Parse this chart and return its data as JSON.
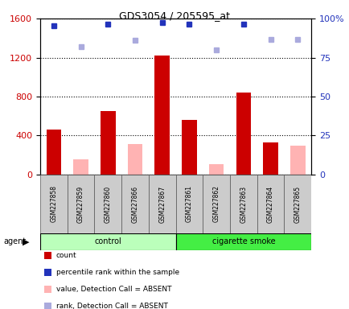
{
  "title": "GDS3054 / 205595_at",
  "samples": [
    "GSM227858",
    "GSM227859",
    "GSM227860",
    "GSM227866",
    "GSM227867",
    "GSM227861",
    "GSM227862",
    "GSM227863",
    "GSM227864",
    "GSM227865"
  ],
  "count_values": [
    460,
    null,
    650,
    null,
    1220,
    560,
    null,
    840,
    330,
    null
  ],
  "absent_value_values": [
    null,
    155,
    null,
    310,
    null,
    null,
    105,
    null,
    null,
    295
  ],
  "rank_values": [
    1530,
    null,
    1545,
    null,
    1560,
    1540,
    null,
    1545,
    null,
    null
  ],
  "rank_absent_values": [
    null,
    1310,
    null,
    1380,
    null,
    null,
    1280,
    null,
    1385,
    1385
  ],
  "left_ylim": [
    0,
    1600
  ],
  "right_ylim": [
    0,
    100
  ],
  "left_yticks": [
    0,
    400,
    800,
    1200,
    1600
  ],
  "right_yticks": [
    0,
    25,
    50,
    75,
    100
  ],
  "right_yticklabels": [
    "0",
    "25",
    "50",
    "75",
    "100%"
  ],
  "count_color": "#cc0000",
  "absent_value_color": "#ffb3b3",
  "rank_color": "#2233bb",
  "rank_absent_color": "#aaaadd",
  "control_color": "#bbffbb",
  "smoke_color": "#44ee44",
  "legend_items": [
    {
      "color": "#cc0000",
      "label": "count"
    },
    {
      "color": "#2233bb",
      "label": "percentile rank within the sample"
    },
    {
      "color": "#ffb3b3",
      "label": "value, Detection Call = ABSENT"
    },
    {
      "color": "#aaaadd",
      "label": "rank, Detection Call = ABSENT"
    }
  ],
  "marker_size": 5
}
